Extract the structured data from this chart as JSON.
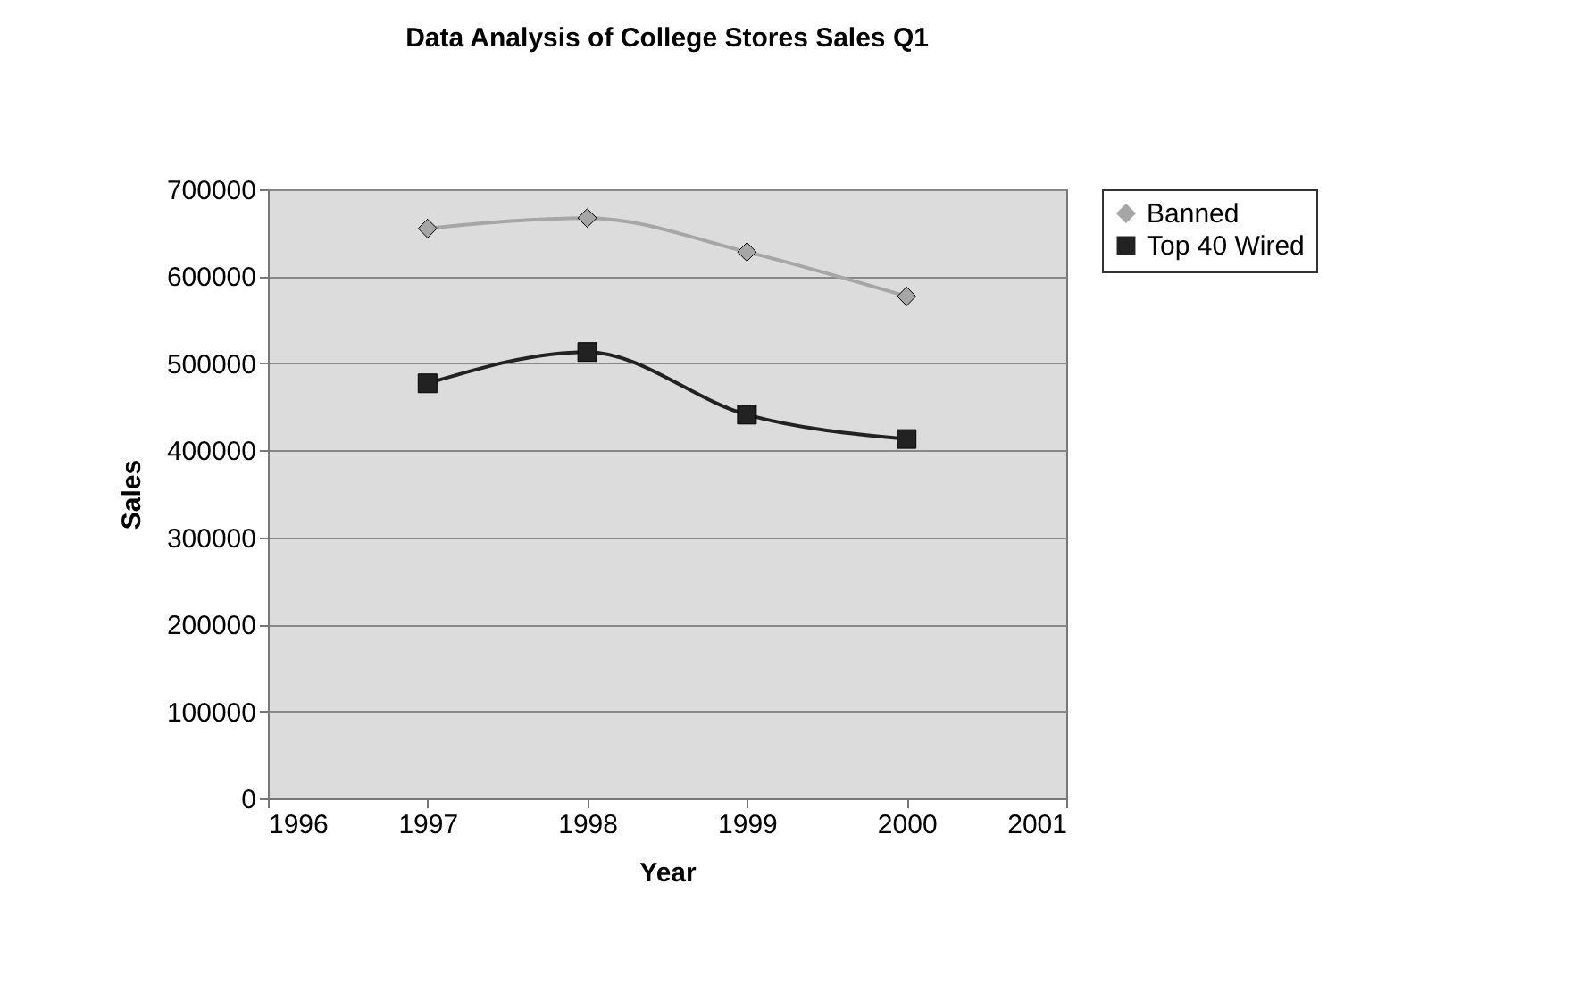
{
  "chart_data": {
    "type": "line",
    "title": "Data Analysis of College Stores Sales Q1",
    "xlabel": "Year",
    "ylabel": "Sales",
    "x": [
      1997,
      1998,
      1999,
      2000
    ],
    "series": [
      {
        "name": "Banned",
        "color": "#a6a6a6",
        "marker": "diamond",
        "values": [
          655000,
          667000,
          628000,
          577000
        ]
      },
      {
        "name": "Top 40 Wired",
        "color": "#222222",
        "marker": "square",
        "values": [
          477000,
          513000,
          441000,
          413000
        ]
      }
    ],
    "xlim": [
      1996,
      2001
    ],
    "xticks": [
      1996,
      1997,
      1998,
      1999,
      2000,
      2001
    ],
    "ylim": [
      0,
      700000
    ],
    "yticks": [
      0,
      100000,
      200000,
      300000,
      400000,
      500000,
      600000,
      700000
    ],
    "grid": "y",
    "legend": "right",
    "line_style": "solid"
  }
}
